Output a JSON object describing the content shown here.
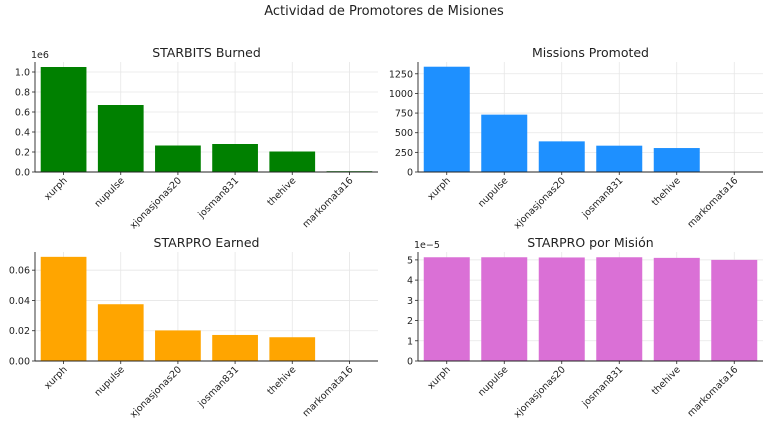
{
  "figure": {
    "title": "Actividad de Promotores de Misiones"
  },
  "chart_data": [
    {
      "type": "bar",
      "title": "STARBITS Burned",
      "categories": [
        "xurph",
        "nupulse",
        "xjonasjonas20",
        "josman831",
        "thehive",
        "markomata16"
      ],
      "values": [
        1050000,
        670000,
        265000,
        280000,
        205000,
        8000
      ],
      "ylim": [
        0,
        1100000
      ],
      "yticks": [
        0,
        200000,
        400000,
        600000,
        800000,
        1000000
      ],
      "ytick_labels": [
        "0.0",
        "0.2",
        "0.4",
        "0.6",
        "0.8",
        "1.0"
      ],
      "offset_label": "1e6",
      "color": "#008000",
      "grid": true
    },
    {
      "type": "bar",
      "title": "Missions Promoted",
      "categories": [
        "xurph",
        "nupulse",
        "xjonasjonas20",
        "josman831",
        "thehive",
        "markomata16"
      ],
      "values": [
        1340,
        730,
        390,
        335,
        305,
        5
      ],
      "ylim": [
        0,
        1400
      ],
      "yticks": [
        0,
        250,
        500,
        750,
        1000,
        1250
      ],
      "ytick_labels": [
        "0",
        "250",
        "500",
        "750",
        "1000",
        "1250"
      ],
      "offset_label": "",
      "color": "#1e90ff",
      "grid": true
    },
    {
      "type": "bar",
      "title": "STARPRO Earned",
      "categories": [
        "xurph",
        "nupulse",
        "xjonasjonas20",
        "josman831",
        "thehive",
        "markomata16"
      ],
      "values": [
        0.0688,
        0.0375,
        0.0202,
        0.0172,
        0.0157,
        0.0003
      ],
      "ylim": [
        0,
        0.072
      ],
      "yticks": [
        0,
        0.02,
        0.04,
        0.06
      ],
      "ytick_labels": [
        "0.00",
        "0.02",
        "0.04",
        "0.06"
      ],
      "offset_label": "",
      "color": "#ffa500",
      "grid": true
    },
    {
      "type": "bar",
      "title": "STARPRO por Misión",
      "categories": [
        "xurph",
        "nupulse",
        "xjonasjonas20",
        "josman831",
        "thehive",
        "markomata16"
      ],
      "values": [
        5.13e-05,
        5.13e-05,
        5.12e-05,
        5.13e-05,
        5.1e-05,
        5e-05
      ],
      "ylim": [
        0,
        5.39e-05
      ],
      "yticks": [
        0,
        1e-05,
        2e-05,
        3e-05,
        4e-05,
        5e-05
      ],
      "ytick_labels": [
        "0",
        "1",
        "2",
        "3",
        "4",
        "5"
      ],
      "offset_label": "1e−5",
      "color": "#da70d6",
      "grid": true
    }
  ]
}
